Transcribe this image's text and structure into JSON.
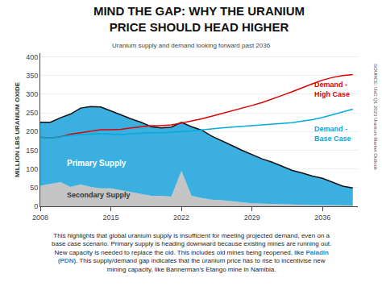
{
  "chart_data": {
    "type": "area",
    "title": "MIND THE GAP: WHY THE URANIUM\nPRICE SHOULD HEAD HIGHER",
    "subtitle": "Uranium supply and demand looking forward past 2036",
    "ylabel": "MILLION LBS URANIUM OXIDE",
    "source": "SOURCE: UxC Q1 2023 Uranium Market Outlook",
    "x": [
      2008,
      2009,
      2010,
      2011,
      2012,
      2013,
      2014,
      2015,
      2016,
      2017,
      2018,
      2019,
      2020,
      2021,
      2022,
      2023,
      2024,
      2025,
      2026,
      2027,
      2028,
      2029,
      2030,
      2031,
      2032,
      2033,
      2034,
      2035,
      2036,
      2037,
      2038,
      2039
    ],
    "stacked": true,
    "series": [
      {
        "type": "area",
        "color": "#c5c5c5",
        "values": [
          55,
          60,
          65,
          52,
          58,
          52,
          48,
          48,
          43,
          38,
          33,
          28,
          28,
          26,
          95,
          28,
          22,
          18,
          16,
          13,
          10,
          8,
          7,
          6,
          5,
          4,
          4,
          3,
          3,
          3,
          2,
          2
        ]
      },
      {
        "type": "area",
        "color": "#3aafe0",
        "values": [
          170,
          165,
          172,
          195,
          205,
          215,
          218,
          208,
          202,
          196,
          192,
          185,
          182,
          186,
          130,
          185,
          182,
          170,
          160,
          150,
          140,
          130,
          120,
          112,
          102,
          92,
          85,
          78,
          72,
          62,
          52,
          47
        ]
      },
      {
        "type": "line",
        "color": "#111111",
        "values": [
          225,
          225,
          237,
          247,
          263,
          267,
          266,
          256,
          245,
          234,
          225,
          213,
          210,
          212,
          225,
          213,
          204,
          188,
          176,
          163,
          150,
          138,
          127,
          118,
          107,
          96,
          89,
          81,
          75,
          65,
          54,
          49
        ]
      },
      {
        "type": "line",
        "color": "#dd0000",
        "values": [
          185,
          183,
          186,
          193,
          197,
          201,
          205,
          205,
          206,
          210,
          213,
          216,
          216,
          218,
          223,
          228,
          234,
          241,
          248,
          255,
          262,
          270,
          278,
          287,
          297,
          307,
          318,
          328,
          338,
          345,
          350,
          353
        ]
      },
      {
        "type": "line",
        "color": "#00aadd",
        "values": [
          185,
          183,
          186,
          190,
          192,
          194,
          195,
          193,
          192,
          194,
          196,
          197,
          197,
          198,
          200,
          202,
          205,
          207,
          210,
          212,
          214,
          216,
          218,
          220,
          222,
          224,
          228,
          232,
          238,
          245,
          252,
          260
        ]
      }
    ],
    "xlim": [
      2008,
      2039.5
    ],
    "xticks": [
      2008,
      2015,
      2022,
      2029,
      2036
    ],
    "ylim": [
      0,
      410
    ],
    "yticks": [
      0,
      50,
      100,
      150,
      200,
      250,
      300,
      350,
      400
    ],
    "grid": true,
    "annotations": [
      {
        "text": "Primary Supply",
        "x": 2010.5,
        "y": 115,
        "color": "#ffffff"
      },
      {
        "text": "Secondary Supply",
        "x": 2010.5,
        "y": 30,
        "color": "#333333"
      },
      {
        "text": "Demand -\nHigh Case",
        "x": 2035,
        "y": 340,
        "color": "#dd0000"
      },
      {
        "text": "Demand -\nBase Case",
        "x": 2035,
        "y": 222,
        "color": "#00aadd"
      }
    ],
    "footer": [
      [
        {
          "text": "This highlights that global uranium supply is insufficient for meeting projected demand, even on a",
          "color": "#222222"
        }
      ],
      [
        {
          "text": "base case scenario. Primary supply is heading downward because existing mines are running out.",
          "color": "#222222"
        }
      ],
      [
        {
          "text": "New capacity is needed to replace the old. This includes old mines being reopened, like ",
          "color": "#222222"
        },
        {
          "text": "Paladin",
          "color": "#2288cc",
          "bold": true
        }
      ],
      [
        {
          "text": "(PDN)",
          "color": "#2288cc",
          "bold": true
        },
        {
          "text": ". This supply/demand gap indicates that the uranium price has to rise to incentivise new",
          "color": "#222222"
        }
      ],
      [
        {
          "text": "mining capacity, like Bannerman’s Etango mine in Namibia.",
          "color": "#222222"
        }
      ]
    ]
  }
}
